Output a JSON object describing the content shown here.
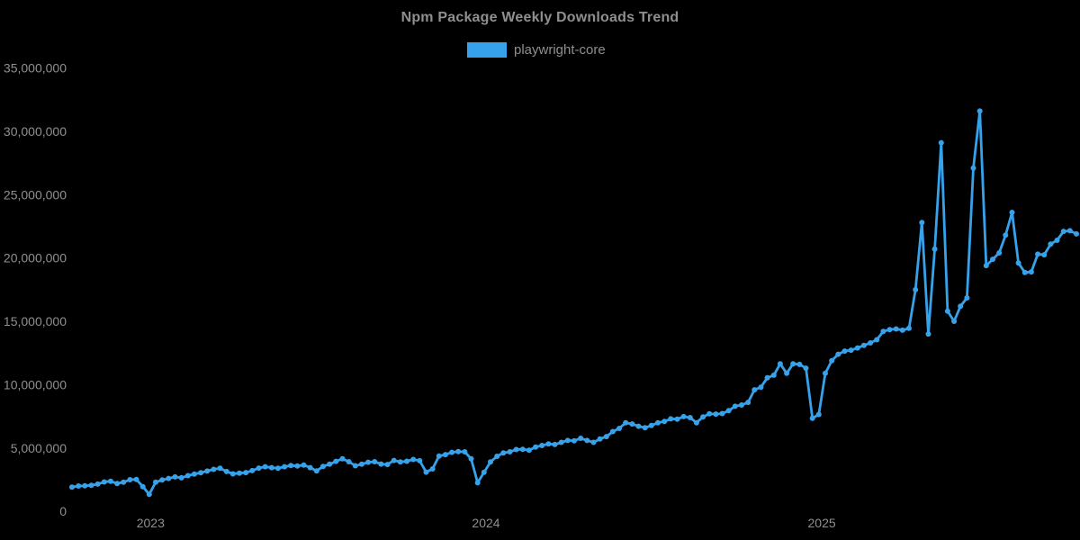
{
  "title": "Npm Package Weekly Downloads Trend",
  "legend": {
    "label": "playwright-core",
    "swatch_color": "#36A2EB"
  },
  "colors": {
    "background": "#000000",
    "line": "#36A2EB",
    "point": "#36A2EB",
    "text": "#8f8f8f"
  },
  "chart_data": {
    "type": "line",
    "title": "Npm Package Weekly Downloads Trend",
    "xlabel": "",
    "ylabel": "",
    "grid": false,
    "legend_position": "top",
    "point_style": "circle",
    "x_axis": {
      "unit": "weeks",
      "ticks": [
        {
          "label": "2023",
          "week_index": 12.2
        },
        {
          "label": "2024",
          "week_index": 64.3
        },
        {
          "label": "2025",
          "week_index": 116.45
        }
      ]
    },
    "y_axis": {
      "unit": "downloads per week",
      "range_millions": [
        0,
        35
      ],
      "ticks": [
        {
          "label": "0",
          "value_millions": 0
        },
        {
          "label": "5,000,000",
          "value_millions": 5
        },
        {
          "label": "10,000,000",
          "value_millions": 10
        },
        {
          "label": "15,000,000",
          "value_millions": 15
        },
        {
          "label": "20,000,000",
          "value_millions": 20
        },
        {
          "label": "25,000,000",
          "value_millions": 25
        },
        {
          "label": "30,000,000",
          "value_millions": 30
        },
        {
          "label": "35,000,000",
          "value_millions": 35
        }
      ]
    },
    "series": [
      {
        "name": "playwright-core",
        "unit": "millions of weekly downloads",
        "values": [
          1.92,
          2.0,
          2.02,
          2.06,
          2.15,
          2.32,
          2.38,
          2.2,
          2.3,
          2.5,
          2.52,
          1.95,
          1.35,
          2.3,
          2.48,
          2.6,
          2.72,
          2.65,
          2.82,
          2.95,
          3.05,
          3.18,
          3.32,
          3.4,
          3.15,
          2.96,
          3.02,
          3.06,
          3.22,
          3.42,
          3.52,
          3.45,
          3.4,
          3.52,
          3.62,
          3.58,
          3.66,
          3.45,
          3.2,
          3.55,
          3.72,
          3.95,
          4.15,
          3.92,
          3.6,
          3.72,
          3.88,
          3.92,
          3.74,
          3.7,
          4.02,
          3.9,
          3.96,
          4.1,
          4.0,
          3.1,
          3.35,
          4.37,
          4.48,
          4.66,
          4.72,
          4.7,
          4.15,
          2.26,
          3.08,
          3.9,
          4.35,
          4.62,
          4.7,
          4.88,
          4.9,
          4.83,
          5.08,
          5.2,
          5.33,
          5.28,
          5.45,
          5.6,
          5.58,
          5.77,
          5.6,
          5.45,
          5.72,
          5.9,
          6.3,
          6.55,
          7.0,
          6.9,
          6.72,
          6.6,
          6.78,
          7.0,
          7.1,
          7.3,
          7.28,
          7.48,
          7.4,
          7.0,
          7.45,
          7.7,
          7.68,
          7.72,
          7.95,
          8.3,
          8.4,
          8.6,
          9.6,
          9.8,
          10.55,
          10.75,
          11.65,
          10.9,
          11.65,
          11.6,
          11.3,
          7.35,
          7.65,
          10.9,
          11.9,
          12.4,
          12.65,
          12.72,
          12.9,
          13.1,
          13.3,
          13.55,
          14.2,
          14.35,
          14.4,
          14.3,
          14.45,
          17.5,
          22.8,
          14.0,
          20.7,
          29.1,
          15.8,
          15.0,
          16.2,
          16.85,
          27.1,
          31.6,
          19.4,
          19.9,
          20.4,
          21.8,
          23.6,
          19.6,
          18.85,
          18.9,
          20.3,
          20.25,
          21.1,
          21.4,
          22.1,
          22.15,
          21.9
        ]
      }
    ]
  }
}
